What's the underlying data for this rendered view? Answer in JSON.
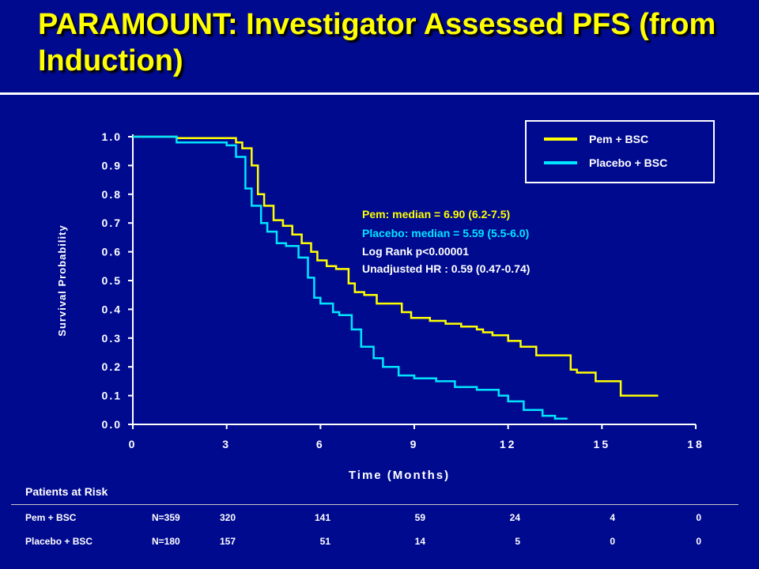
{
  "title": "PARAMOUNT:  Investigator Assessed PFS (from Induction)",
  "colors": {
    "background": "#000a8f",
    "title": "#ffff00",
    "pem": "#ffff00",
    "placebo": "#00e5ff",
    "text": "#ffffff"
  },
  "annotation": {
    "pem": "Pem: median = 6.90 (6.2-7.5)",
    "placebo": "Placebo: median = 5.59 (5.5-6.0)",
    "logrank": "Log Rank p<0.00001",
    "hr": "Unadjusted HR : 0.59 (0.47-0.74)"
  },
  "risk": {
    "title": "Patients at Risk",
    "rows": [
      {
        "label": "Pem + BSC",
        "n": "N=359",
        "values": [
          "320",
          "141",
          "59",
          "24",
          "4",
          "0"
        ]
      },
      {
        "label": "Placebo + BSC",
        "n": "N=180",
        "values": [
          "157",
          "51",
          "14",
          "5",
          "0",
          "0"
        ]
      }
    ]
  },
  "chart_data": {
    "type": "line",
    "title": "PARAMOUNT:  Investigator Assessed PFS (from Induction)",
    "xlabel": "Time (Months)",
    "ylabel": "Survival Probability",
    "xlim": [
      0,
      18
    ],
    "ylim": [
      0,
      1.0
    ],
    "xticks": [
      "0",
      "3",
      "6",
      "9",
      "12",
      "15",
      "18"
    ],
    "yticks": [
      "0.0",
      "0.1",
      "0.2",
      "0.3",
      "0.4",
      "0.5",
      "0.6",
      "0.7",
      "0.8",
      "0.9",
      "1.0"
    ],
    "legend_position": "top-right",
    "step": true,
    "series": [
      {
        "name": "Pem + BSC",
        "color": "#ffff00",
        "x": [
          0,
          1.4,
          3.3,
          3.5,
          3.8,
          4.0,
          4.2,
          4.5,
          4.8,
          5.1,
          5.4,
          5.7,
          5.9,
          6.2,
          6.5,
          6.9,
          7.1,
          7.4,
          7.8,
          8.6,
          8.9,
          9.5,
          10.0,
          10.5,
          11.0,
          11.2,
          11.5,
          12.0,
          12.4,
          12.9,
          14.0,
          14.2,
          14.8,
          15.2,
          15.6,
          16.8
        ],
        "y": [
          1.0,
          0.995,
          0.98,
          0.96,
          0.9,
          0.8,
          0.76,
          0.71,
          0.69,
          0.66,
          0.63,
          0.6,
          0.57,
          0.55,
          0.54,
          0.49,
          0.46,
          0.45,
          0.42,
          0.39,
          0.37,
          0.36,
          0.35,
          0.34,
          0.33,
          0.32,
          0.31,
          0.29,
          0.27,
          0.24,
          0.19,
          0.18,
          0.15,
          0.15,
          0.1,
          0.1
        ]
      },
      {
        "name": "Placebo + BSC",
        "color": "#00e5ff",
        "x": [
          0,
          1.4,
          3.0,
          3.3,
          3.6,
          3.8,
          4.1,
          4.3,
          4.6,
          4.9,
          5.3,
          5.6,
          5.8,
          6.0,
          6.4,
          6.6,
          7.0,
          7.3,
          7.7,
          8.0,
          8.5,
          9.0,
          9.7,
          10.3,
          11.0,
          11.7,
          12.0,
          12.5,
          13.1,
          13.5,
          13.9
        ],
        "y": [
          1.0,
          0.98,
          0.97,
          0.93,
          0.82,
          0.76,
          0.7,
          0.67,
          0.63,
          0.62,
          0.58,
          0.51,
          0.44,
          0.42,
          0.39,
          0.38,
          0.33,
          0.27,
          0.23,
          0.2,
          0.17,
          0.16,
          0.15,
          0.13,
          0.12,
          0.1,
          0.08,
          0.05,
          0.03,
          0.02,
          0.02
        ]
      }
    ]
  }
}
